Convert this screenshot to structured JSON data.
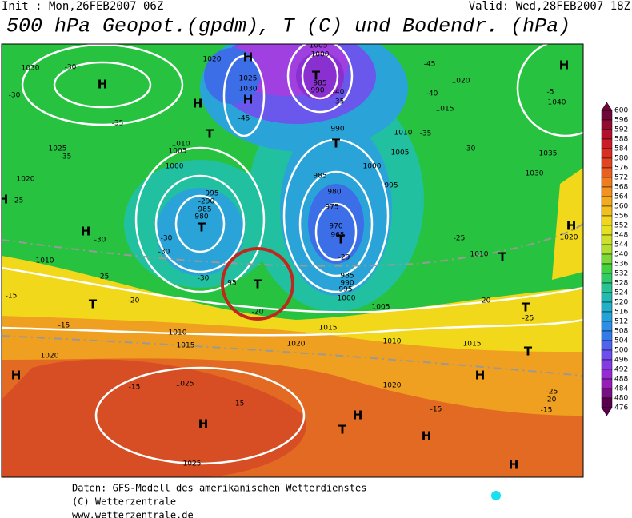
{
  "header": {
    "init": "Init : Mon,26FEB2007 06Z",
    "valid": "Valid: Wed,28FEB2007 18Z",
    "title": "500 hPa Geopot.(gpdm), T (C) und Bodendr. (hPa)"
  },
  "colorbar": {
    "labels": [
      600,
      596,
      592,
      588,
      584,
      580,
      576,
      572,
      568,
      564,
      560,
      556,
      552,
      548,
      544,
      540,
      536,
      532,
      528,
      524,
      520,
      516,
      512,
      508,
      504,
      500,
      496,
      492,
      488,
      484,
      480,
      476
    ]
  },
  "pressure_centers": [
    "H",
    "H",
    "H",
    "H",
    "T",
    "H",
    "T",
    "H",
    "T",
    "H",
    "T",
    "T",
    "T",
    "H",
    "T",
    "H",
    "T",
    "T",
    "H",
    "T",
    "H",
    "H",
    "T",
    "H",
    "H"
  ],
  "contour_labels": [
    "1030",
    "-30",
    "-30",
    "-35",
    "1025",
    "-35",
    "1020",
    "-25",
    "-30",
    "1010",
    "-25",
    "-15",
    "-20",
    "-15",
    "1020",
    "1015",
    "1010",
    "-15",
    "1025",
    "-15",
    "1025",
    "1020",
    "1015",
    "1020",
    "1025",
    "1030",
    "-45",
    "1010",
    "1005",
    "1000",
    "995",
    "-290",
    "985",
    "980",
    "-30",
    "-30",
    "-30",
    "95",
    "-20",
    "1005",
    "1000",
    "985",
    "990",
    "-40",
    "-35",
    "990",
    "985",
    "980",
    "975",
    "970",
    "965",
    "-29",
    "985",
    "990",
    "995",
    "1000",
    "1005",
    "-45",
    "1020",
    "-40",
    "1015",
    "1010",
    "-35",
    "1005",
    "1000",
    "995",
    "-30",
    "-25",
    "1010",
    "-5",
    "1040",
    "1035",
    "1030",
    "1020",
    "-20",
    "-25",
    "1010",
    "1015",
    "1020",
    "-15",
    "-20",
    "-15",
    "-25"
  ],
  "footer": {
    "line1": "Daten: GFS-Modell des amerikanischen Wetterdienstes",
    "line2": "(C) Wetterzentrale",
    "line3": "www.wetterzentrale.de"
  }
}
